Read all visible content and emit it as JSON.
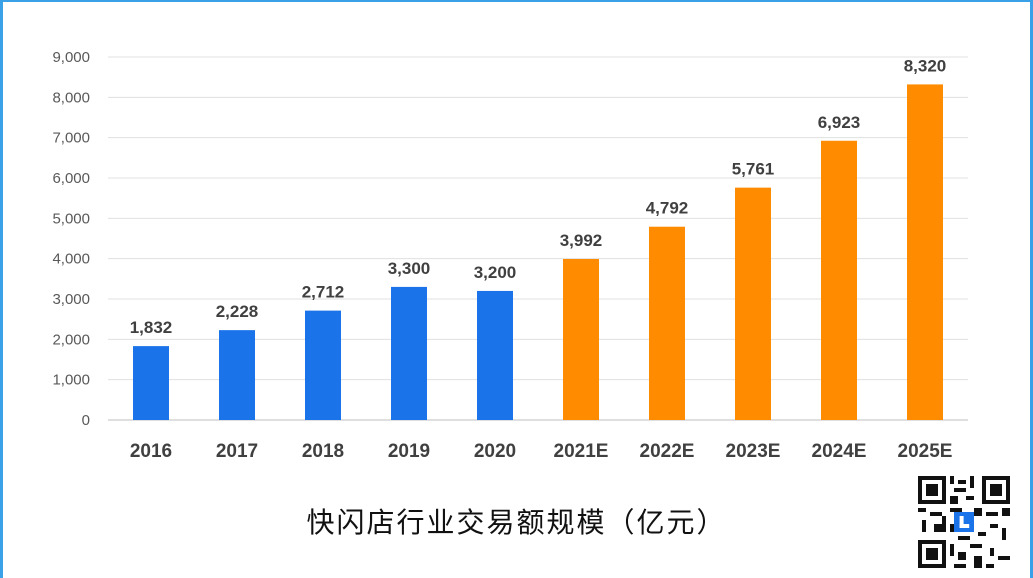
{
  "chart_data": {
    "type": "bar",
    "categories": [
      "2016",
      "2017",
      "2018",
      "2019",
      "2020",
      "2021E",
      "2022E",
      "2023E",
      "2024E",
      "2025E"
    ],
    "values": [
      1832,
      2228,
      2712,
      3300,
      3200,
      3992,
      4792,
      5761,
      6923,
      8320
    ],
    "value_labels": [
      "1,832",
      "2,228",
      "2,712",
      "3,300",
      "3,200",
      "3,992",
      "4,792",
      "5,761",
      "6,923",
      "8,320"
    ],
    "ylim": [
      0,
      9000
    ],
    "yticks": [
      0,
      1000,
      2000,
      3000,
      4000,
      5000,
      6000,
      7000,
      8000,
      9000
    ],
    "ytick_labels": [
      "0",
      "1,000",
      "2,000",
      "3,000",
      "4,000",
      "5,000",
      "6,000",
      "7,000",
      "8,000",
      "9,000"
    ],
    "grid": true,
    "colors": {
      "actual": "#1a73e8",
      "estimate": "#ff8c00"
    },
    "estimate_from_index": 5
  },
  "caption": "快闪店行业交易额规模（亿元）",
  "qr_icon": "qr-code-icon"
}
